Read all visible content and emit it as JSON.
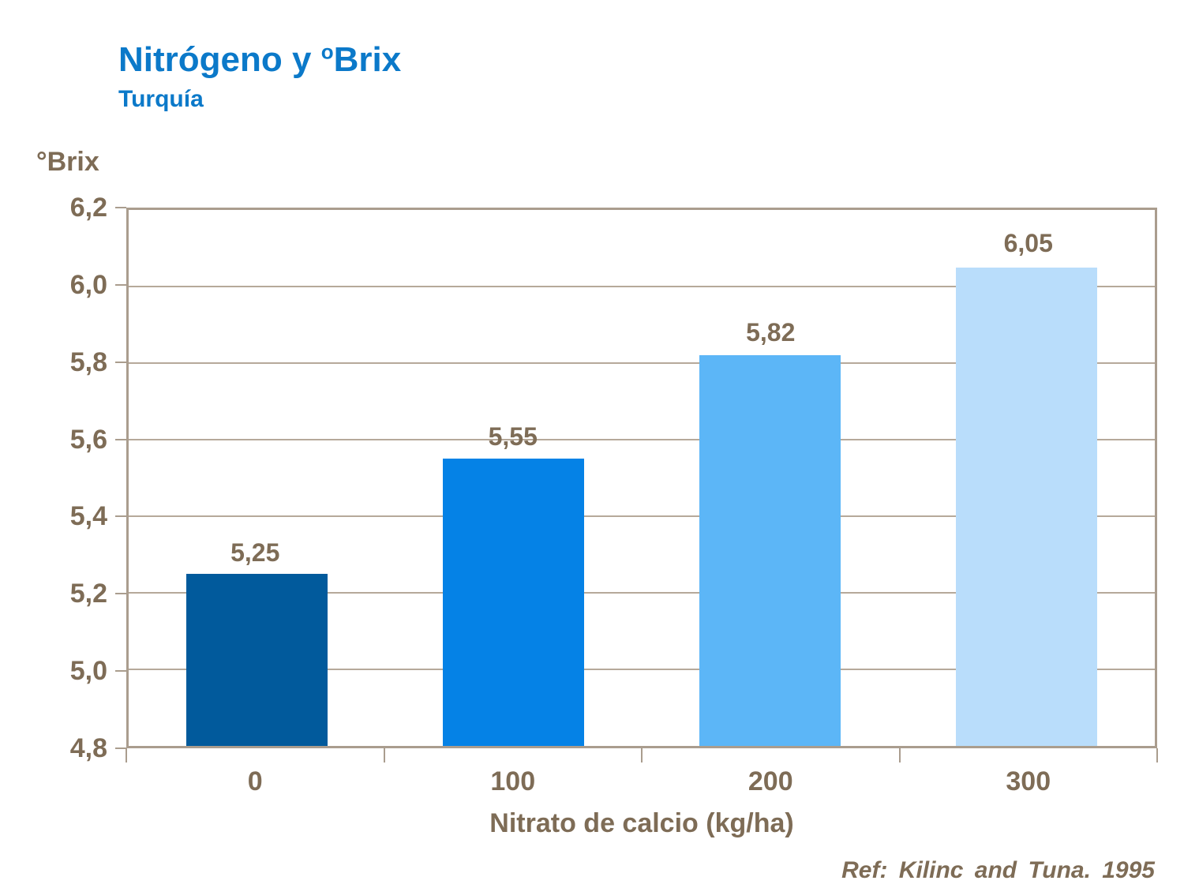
{
  "header": {
    "title_main": "Nitrógeno y ",
    "title_sup": "o",
    "title_tail": "Brix",
    "subtitle": "Turquía"
  },
  "chart_data": {
    "type": "bar",
    "title": "Nitrógeno y ºBrix",
    "subtitle": "Turquía",
    "categories": [
      "0",
      "100",
      "200",
      "300"
    ],
    "values": [
      5.25,
      5.55,
      5.82,
      6.05
    ],
    "value_labels": [
      "5,25",
      "5,55",
      "5,82",
      "6,05"
    ],
    "bar_colors": [
      "#015A9C",
      "#0582E6",
      "#5CB6F7",
      "#B9DDFB"
    ],
    "xlabel": "Nitrato de calcio (kg/ha)",
    "ylabel": "°Brix",
    "ylim": [
      4.8,
      6.2
    ],
    "yticks": [
      {
        "v": 4.8,
        "label": "4,8"
      },
      {
        "v": 5.0,
        "label": "5,0"
      },
      {
        "v": 5.2,
        "label": "5,2"
      },
      {
        "v": 5.4,
        "label": "5,4"
      },
      {
        "v": 5.6,
        "label": "5,6"
      },
      {
        "v": 5.8,
        "label": "5,8"
      },
      {
        "v": 6.0,
        "label": "6,0"
      },
      {
        "v": 6.2,
        "label": "6,2"
      }
    ],
    "grid": "horizontal",
    "legend": "none",
    "bar_width_fraction": 0.551
  },
  "footer": {
    "reference": "Ref: Kilinc and Tuna. 1995"
  },
  "colors": {
    "title": "#0B79C9",
    "text": "#7E6C56",
    "axis": "#AA9D8E",
    "grid": "#B6A99A",
    "background": "#FFFFFF"
  }
}
